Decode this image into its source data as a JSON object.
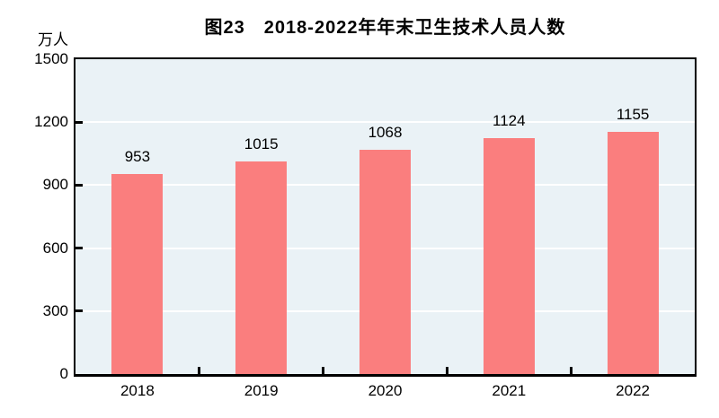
{
  "figure": {
    "title": "图23　2018-2022年年末卫生技术人员人数",
    "unit_label": "万人"
  },
  "chart_data": {
    "type": "bar",
    "title": "图23　2018-2022年年末卫生技术人员人数",
    "categories": [
      "2018",
      "2019",
      "2020",
      "2021",
      "2022"
    ],
    "values": [
      953,
      1015,
      1068,
      1124,
      1155
    ],
    "xlabel": "",
    "ylabel": "万人",
    "ylim": [
      0,
      1500
    ],
    "ytick_step": 300,
    "ytick_labels": [
      "0",
      "300",
      "600",
      "900",
      "1200",
      "1500"
    ],
    "grid": true,
    "legend": "none",
    "bar_color": "#FA7E7E",
    "plot_bg_color": "#EAF2F6",
    "grid_color": "#FFFFFF",
    "axis_color": "#000000"
  }
}
